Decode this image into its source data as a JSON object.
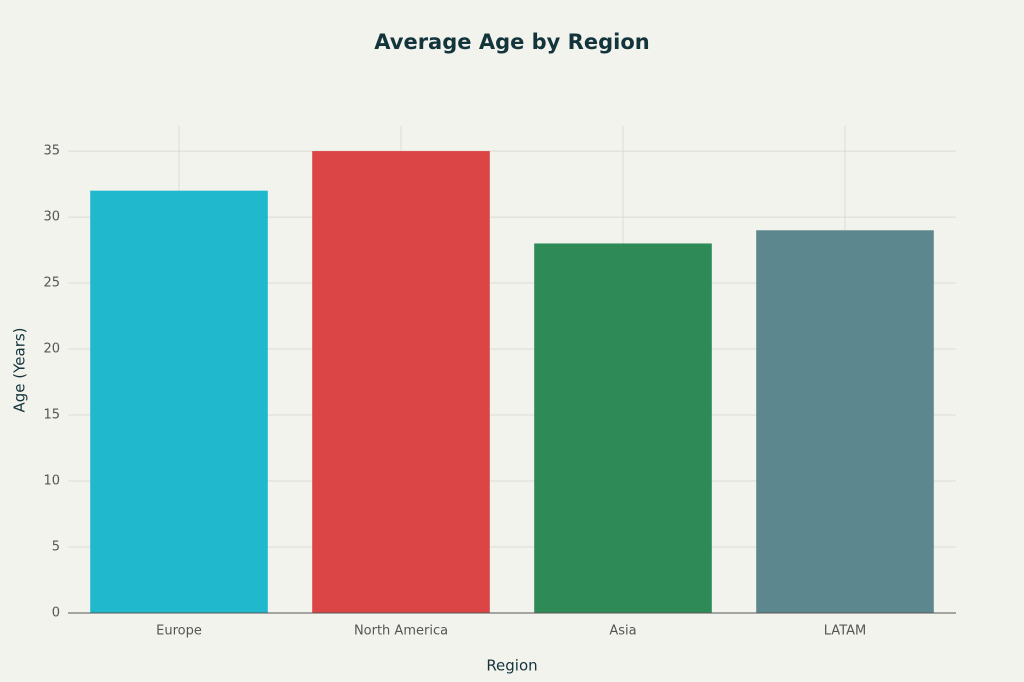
{
  "chart_data": {
    "type": "bar",
    "title": "Average Age by Region",
    "x_label": "Region",
    "y_label": "Age (Years)",
    "categories": [
      "Europe",
      "North America",
      "Asia",
      "LATAM"
    ],
    "values": [
      32,
      35,
      28,
      29
    ],
    "colors": [
      "#1fb8cd",
      "#db4545",
      "#2e8b57",
      "#5d878f"
    ],
    "ylim": [
      0,
      36.9
    ],
    "yticks": [
      0,
      5,
      10,
      15,
      20,
      25,
      30,
      35
    ],
    "grid": true
  }
}
